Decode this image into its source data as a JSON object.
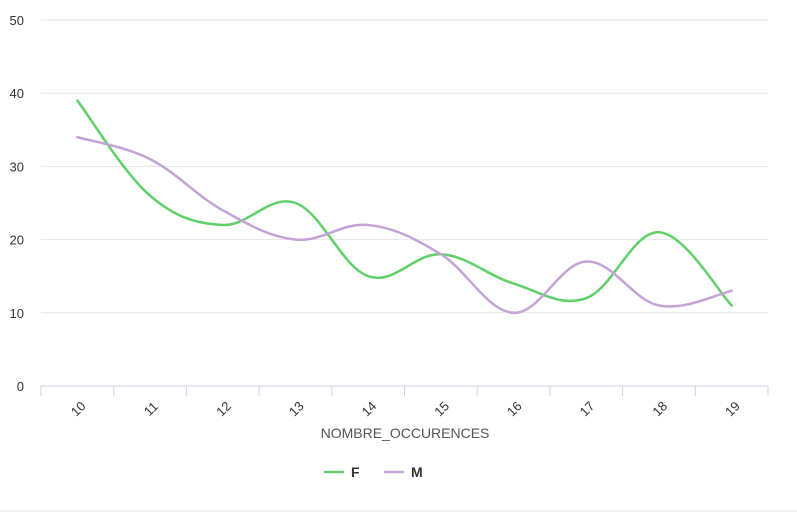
{
  "chart_data": {
    "type": "line",
    "title": "",
    "xlabel": "NOMBRE_OCCURENCES",
    "ylabel": "",
    "categories": [
      "10",
      "11",
      "12",
      "13",
      "14",
      "15",
      "16",
      "17",
      "18",
      "19"
    ],
    "ylim": [
      0,
      50
    ],
    "yticks": [
      "0",
      "10",
      "20",
      "30",
      "40",
      "50"
    ],
    "grid": true,
    "legend_placement": "bottom-center",
    "series": [
      {
        "name": "F",
        "color": "#5fd068",
        "values": [
          39,
          26,
          22,
          25,
          15,
          18,
          14,
          12,
          21,
          11
        ]
      },
      {
        "name": "M",
        "color": "#c3a3d8",
        "values": [
          34,
          31,
          24,
          20,
          22,
          18,
          10,
          17,
          11,
          13
        ]
      }
    ]
  }
}
